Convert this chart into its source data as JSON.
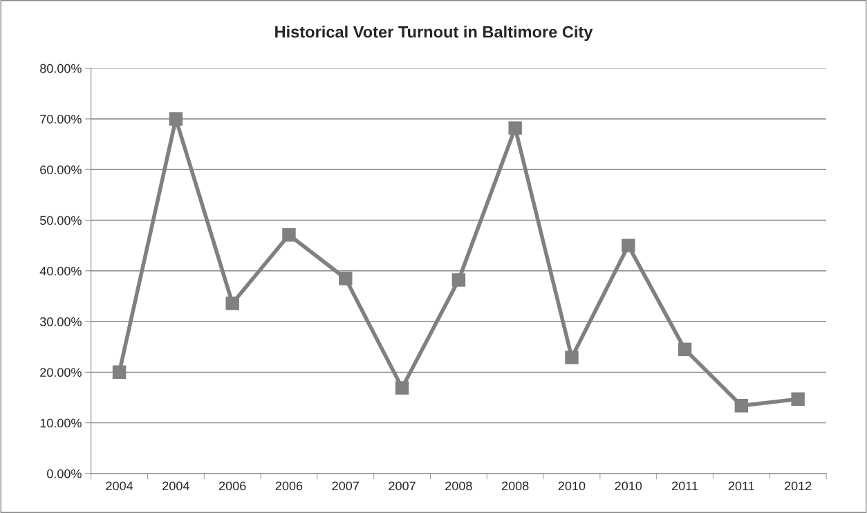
{
  "chart_data": {
    "type": "line",
    "title": "Historical Voter Turnout in Baltimore City",
    "categories": [
      "2004",
      "2004",
      "2006",
      "2006",
      "2007",
      "2007",
      "2008",
      "2008",
      "2010",
      "2010",
      "2011",
      "2011",
      "2012"
    ],
    "series": [
      {
        "color": "#808080",
        "values": [
          20.0,
          70.0,
          33.6,
          47.1,
          38.5,
          16.9,
          38.2,
          68.2,
          22.9,
          45.0,
          24.5,
          13.4,
          14.7
        ]
      }
    ],
    "ylim": [
      0,
      80
    ],
    "yticks": [
      {
        "value": 0,
        "label": "0.00%"
      },
      {
        "value": 10,
        "label": "10.00%"
      },
      {
        "value": 20,
        "label": "20.00%"
      },
      {
        "value": 30,
        "label": "30.00%"
      },
      {
        "value": 40,
        "label": "40.00%"
      },
      {
        "value": 50,
        "label": "50.00%"
      },
      {
        "value": 60,
        "label": "60.00%"
      },
      {
        "value": 70,
        "label": "70.00%"
      },
      {
        "value": 80,
        "label": "80.00%"
      }
    ],
    "grid": "y",
    "marker": "square",
    "line_style": "solid",
    "legend": false
  }
}
